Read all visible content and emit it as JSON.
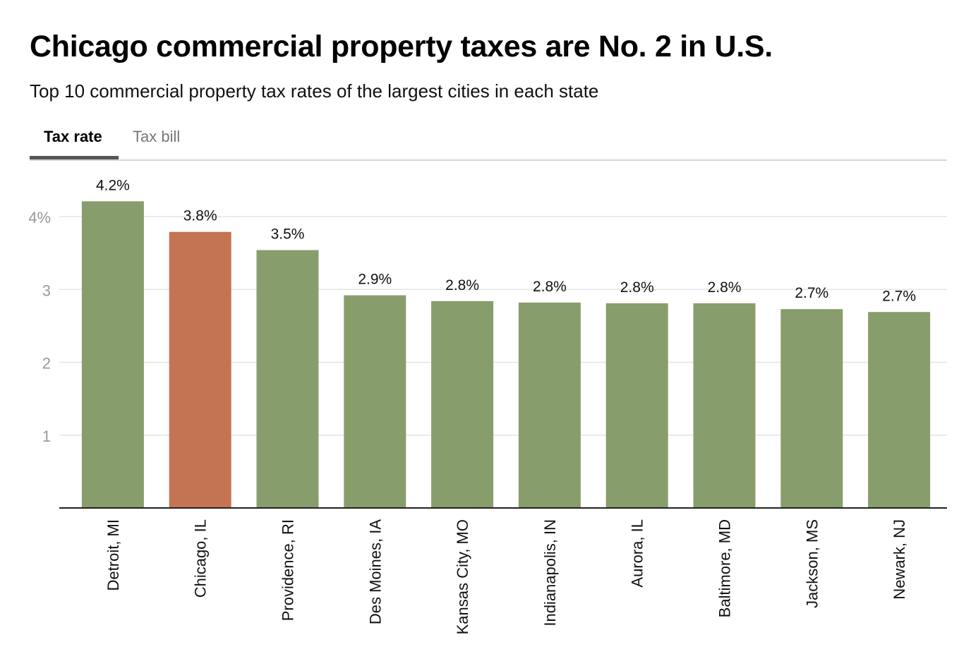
{
  "header": {
    "title": "Chicago commercial property taxes are No. 2 in U.S.",
    "subtitle": "Top 10 commercial property tax rates of the largest cities in each state"
  },
  "tabs": [
    {
      "label": "Tax rate",
      "active": true
    },
    {
      "label": "Tax bill",
      "active": false
    }
  ],
  "colors": {
    "bar_default": "#889d6c",
    "bar_highlight": "#c47452",
    "gridline": "#e3e3e3",
    "axis": "#222222",
    "tick_label": "#999999"
  },
  "chart_data": {
    "type": "bar",
    "title": "Chicago commercial property taxes are No. 2 in U.S.",
    "subtitle": "Top 10 commercial property tax rates of the largest cities in each state",
    "xlabel": "",
    "ylabel": "",
    "ylim": [
      0,
      4
    ],
    "yticks": [
      1,
      2,
      3,
      4
    ],
    "ytick_labels": [
      "1",
      "2",
      "3",
      "4%"
    ],
    "grid": true,
    "categories": [
      "Detroit, MI",
      "Chicago, IL",
      "Providence, RI",
      "Des Moines, IA",
      "Kansas City, MO",
      "Indianapolis, IN",
      "Aurora, IL",
      "Baltimore, MD",
      "Jackson, MS",
      "Newark, NJ"
    ],
    "values": [
      4.21,
      3.79,
      3.54,
      2.92,
      2.84,
      2.82,
      2.81,
      2.81,
      2.73,
      2.69
    ],
    "data_labels": [
      "4.2%",
      "3.8%",
      "3.5%",
      "2.9%",
      "2.8%",
      "2.8%",
      "2.8%",
      "2.8%",
      "2.7%",
      "2.7%"
    ],
    "highlight": [
      "Chicago, IL"
    ]
  }
}
